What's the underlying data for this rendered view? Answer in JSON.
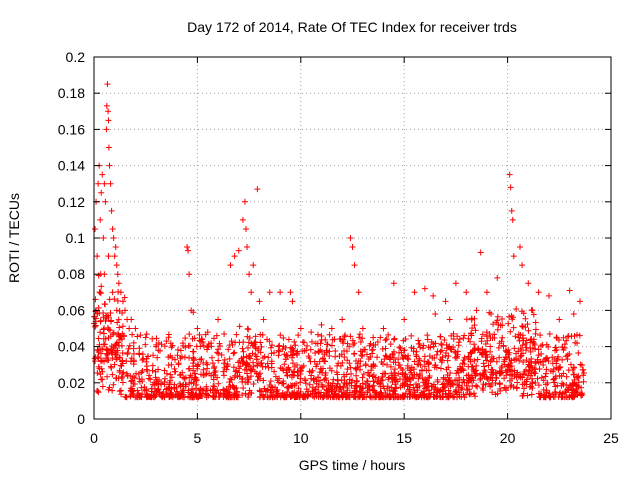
{
  "chart_data": {
    "type": "scatter",
    "title": "Day 172 of 2014, Rate Of TEC Index for receiver trds",
    "xlabel": "GPS time / hours",
    "ylabel": "ROTI / TECUs",
    "xlim": [
      0,
      25
    ],
    "ylim": [
      0,
      0.2
    ],
    "xticks": [
      0,
      5,
      10,
      15,
      20,
      25
    ],
    "xtick_labels": [
      "0",
      "5",
      "10",
      "15",
      "20",
      "25"
    ],
    "yticks": [
      0,
      0.02,
      0.04,
      0.06,
      0.08,
      0.1,
      0.12,
      0.14,
      0.16,
      0.18,
      0.2
    ],
    "ytick_labels": [
      "0",
      "0.02",
      "0.04",
      "0.06",
      "0.08",
      "0.1",
      "0.12",
      "0.14",
      "0.16",
      "0.18",
      "0.2"
    ],
    "grid": true,
    "legend": "none",
    "marker": "+",
    "color": "#ff0000",
    "series": [
      {
        "name": "ROTI",
        "points": [
          [
            0.05,
            0.105
          ],
          [
            0.1,
            0.12
          ],
          [
            0.15,
            0.09
          ],
          [
            0.2,
            0.13
          ],
          [
            0.25,
            0.14
          ],
          [
            0.3,
            0.11
          ],
          [
            0.35,
            0.125
          ],
          [
            0.4,
            0.135
          ],
          [
            0.45,
            0.1
          ],
          [
            0.5,
            0.13
          ],
          [
            0.55,
            0.12
          ],
          [
            0.6,
            0.16
          ],
          [
            0.62,
            0.173
          ],
          [
            0.65,
            0.185
          ],
          [
            0.68,
            0.17
          ],
          [
            0.7,
            0.165
          ],
          [
            0.72,
            0.15
          ],
          [
            0.75,
            0.14
          ],
          [
            0.8,
            0.13
          ],
          [
            0.85,
            0.115
          ],
          [
            0.9,
            0.105
          ],
          [
            0.95,
            0.1
          ],
          [
            1.0,
            0.09
          ],
          [
            1.05,
            0.095
          ],
          [
            1.1,
            0.085
          ],
          [
            1.15,
            0.08
          ],
          [
            1.2,
            0.075
          ],
          [
            1.3,
            0.07
          ],
          [
            1.4,
            0.065
          ],
          [
            1.5,
            0.06
          ],
          [
            1.6,
            0.055
          ],
          [
            1.7,
            0.05
          ],
          [
            0.1,
            0.06
          ],
          [
            0.3,
            0.07
          ],
          [
            0.5,
            0.08
          ],
          [
            0.7,
            0.09
          ],
          [
            0.9,
            0.07
          ],
          [
            1.1,
            0.06
          ],
          [
            4.5,
            0.095
          ],
          [
            4.55,
            0.093
          ],
          [
            4.6,
            0.08
          ],
          [
            4.7,
            0.06
          ],
          [
            4.8,
            0.059
          ],
          [
            6.6,
            0.085
          ],
          [
            6.8,
            0.09
          ],
          [
            7.0,
            0.093
          ],
          [
            7.2,
            0.11
          ],
          [
            7.3,
            0.12
          ],
          [
            7.35,
            0.105
          ],
          [
            7.4,
            0.095
          ],
          [
            7.5,
            0.08
          ],
          [
            7.6,
            0.07
          ],
          [
            7.7,
            0.085
          ],
          [
            7.9,
            0.127
          ],
          [
            8.0,
            0.065
          ],
          [
            8.5,
            0.07
          ],
          [
            9.0,
            0.07
          ],
          [
            9.5,
            0.07
          ],
          [
            9.6,
            0.065
          ],
          [
            12.4,
            0.1
          ],
          [
            12.5,
            0.095
          ],
          [
            12.6,
            0.085
          ],
          [
            12.8,
            0.07
          ],
          [
            14.5,
            0.075
          ],
          [
            15.5,
            0.07
          ],
          [
            16.0,
            0.072
          ],
          [
            16.4,
            0.068
          ],
          [
            17.0,
            0.065
          ],
          [
            17.5,
            0.075
          ],
          [
            18.0,
            0.07
          ],
          [
            18.7,
            0.092
          ],
          [
            19.0,
            0.07
          ],
          [
            19.5,
            0.078
          ],
          [
            20.1,
            0.135
          ],
          [
            20.15,
            0.128
          ],
          [
            20.2,
            0.115
          ],
          [
            20.25,
            0.11
          ],
          [
            20.3,
            0.09
          ],
          [
            20.6,
            0.095
          ],
          [
            20.7,
            0.085
          ],
          [
            21.0,
            0.075
          ],
          [
            21.5,
            0.07
          ],
          [
            22.0,
            0.068
          ],
          [
            23.0,
            0.071
          ],
          [
            23.5,
            0.065
          ],
          [
            1.8,
            0.055
          ],
          [
            2.0,
            0.05
          ],
          [
            2.5,
            0.045
          ],
          [
            3.0,
            0.04
          ],
          [
            3.5,
            0.043
          ],
          [
            5.0,
            0.05
          ],
          [
            5.5,
            0.048
          ],
          [
            6.0,
            0.055
          ],
          [
            8.2,
            0.055
          ],
          [
            10.0,
            0.05
          ],
          [
            10.5,
            0.048
          ],
          [
            11.0,
            0.052
          ],
          [
            11.5,
            0.05
          ],
          [
            12.0,
            0.055
          ],
          [
            13.0,
            0.05
          ],
          [
            13.5,
            0.045
          ],
          [
            14.0,
            0.05
          ],
          [
            15.0,
            0.055
          ],
          [
            16.5,
            0.058
          ],
          [
            17.2,
            0.055
          ],
          [
            18.5,
            0.06
          ],
          [
            19.2,
            0.058
          ],
          [
            21.2,
            0.06
          ],
          [
            22.5,
            0.055
          ],
          [
            23.2,
            0.058
          ]
        ]
      }
    ]
  }
}
